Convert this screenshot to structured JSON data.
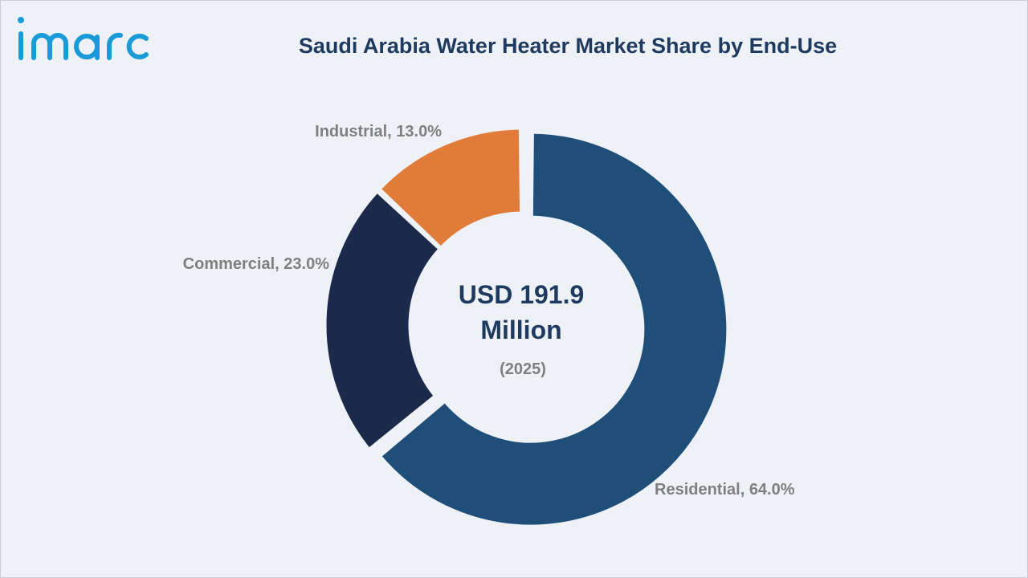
{
  "brand": {
    "logo_text": "imarc",
    "logo_color": "#1a9ad6"
  },
  "chart_data": {
    "type": "pie",
    "title": "Saudi Arabia Water Heater Market Share by End-Use",
    "donut": true,
    "center_text": {
      "value_line1": "USD 191.9",
      "value_line2": "Million",
      "year": "(2025)"
    },
    "slices": [
      {
        "label": "Residential",
        "value": 64.0,
        "display": "Residential, 64.0%",
        "color": "#1f4e79",
        "exploded": true
      },
      {
        "label": "Commercial",
        "value": 23.0,
        "display": "Commercial, 23.0%",
        "color": "#1b2a4a",
        "exploded": false
      },
      {
        "label": "Industrial",
        "value": 13.0,
        "display": "Industrial, 13.0%",
        "color": "#e07b39",
        "exploded": false
      }
    ]
  }
}
